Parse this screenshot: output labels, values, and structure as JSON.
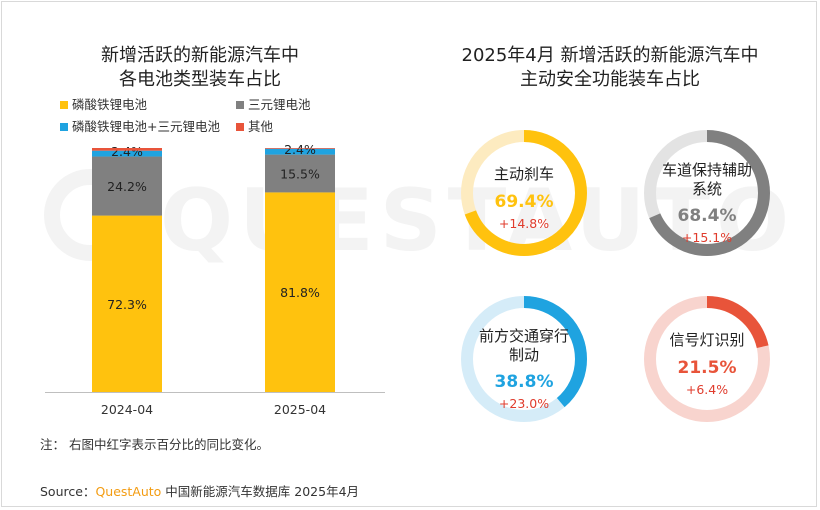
{
  "left_chart": {
    "title_line1": "新增活跃的新能源汽车中",
    "title_line2": "各电池类型装车占比",
    "legend": [
      {
        "label": "磷酸铁锂电池",
        "color": "#FFC20E"
      },
      {
        "label": "三元锂电池",
        "color": "#808080"
      },
      {
        "label": "磷酸铁锂电池+三元锂电池",
        "color": "#1FA3E0"
      },
      {
        "label": "其他",
        "color": "#E8543A"
      }
    ]
  },
  "right_chart": {
    "title_line1": "2025年4月 新增活跃的新能源汽车中",
    "title_line2": "主动安全功能装车占比"
  },
  "note": "注：  右图中红字表示百分比的同比变化。",
  "source": {
    "prefix": "Source：",
    "brand": "QuestAuto",
    "suffix": " 中国新能源汽车数据库 2025年4月"
  },
  "chart_data": [
    {
      "type": "bar",
      "stacked": true,
      "title": "新增活跃的新能源汽车中各电池类型装车占比",
      "categories": [
        "2024-04",
        "2025-04"
      ],
      "ylim": [
        0,
        100
      ],
      "series": [
        {
          "name": "磷酸铁锂电池",
          "values": [
            72.3,
            81.8
          ],
          "labels": [
            "72.3%",
            "81.8%"
          ],
          "color": "#FFC20E"
        },
        {
          "name": "三元锂电池",
          "values": [
            24.2,
            15.5
          ],
          "labels": [
            "24.2%",
            "15.5%"
          ],
          "color": "#808080"
        },
        {
          "name": "磷酸铁锂电池+三元锂电池",
          "values": [
            2.4,
            2.4
          ],
          "labels": [
            "2.4%",
            "2.4%"
          ],
          "color": "#1FA3E0"
        },
        {
          "name": "其他",
          "values": [
            1.1,
            0.3
          ],
          "color": "#E8543A"
        }
      ]
    },
    {
      "type": "pie",
      "variant": "donut-gauges",
      "title": "2025年4月 新增活跃的新能源汽车中主动安全功能装车占比",
      "items": [
        {
          "label": "主动刹车",
          "value": 69.4,
          "value_label": "69.4%",
          "change_label": "+14.8%",
          "color": "#FFC20E",
          "track": "#FDEBC0"
        },
        {
          "label": "车道保持辅助系统",
          "label_lines": [
            "车道保持辅助",
            "系统"
          ],
          "value": 68.4,
          "value_label": "68.4%",
          "change_label": "+15.1%",
          "color": "#808080",
          "track": "#E3E3E3"
        },
        {
          "label": "前方交通穿行制动",
          "label_lines": [
            "前方交通穿行",
            "制动"
          ],
          "value": 38.8,
          "value_label": "38.8%",
          "change_label": "+23.0%",
          "color": "#1FA3E0",
          "track": "#D5ECF8"
        },
        {
          "label": "信号灯识别",
          "value": 21.5,
          "value_label": "21.5%",
          "change_label": "+6.4%",
          "color": "#E8543A",
          "track": "#F8D4CE"
        }
      ]
    }
  ]
}
